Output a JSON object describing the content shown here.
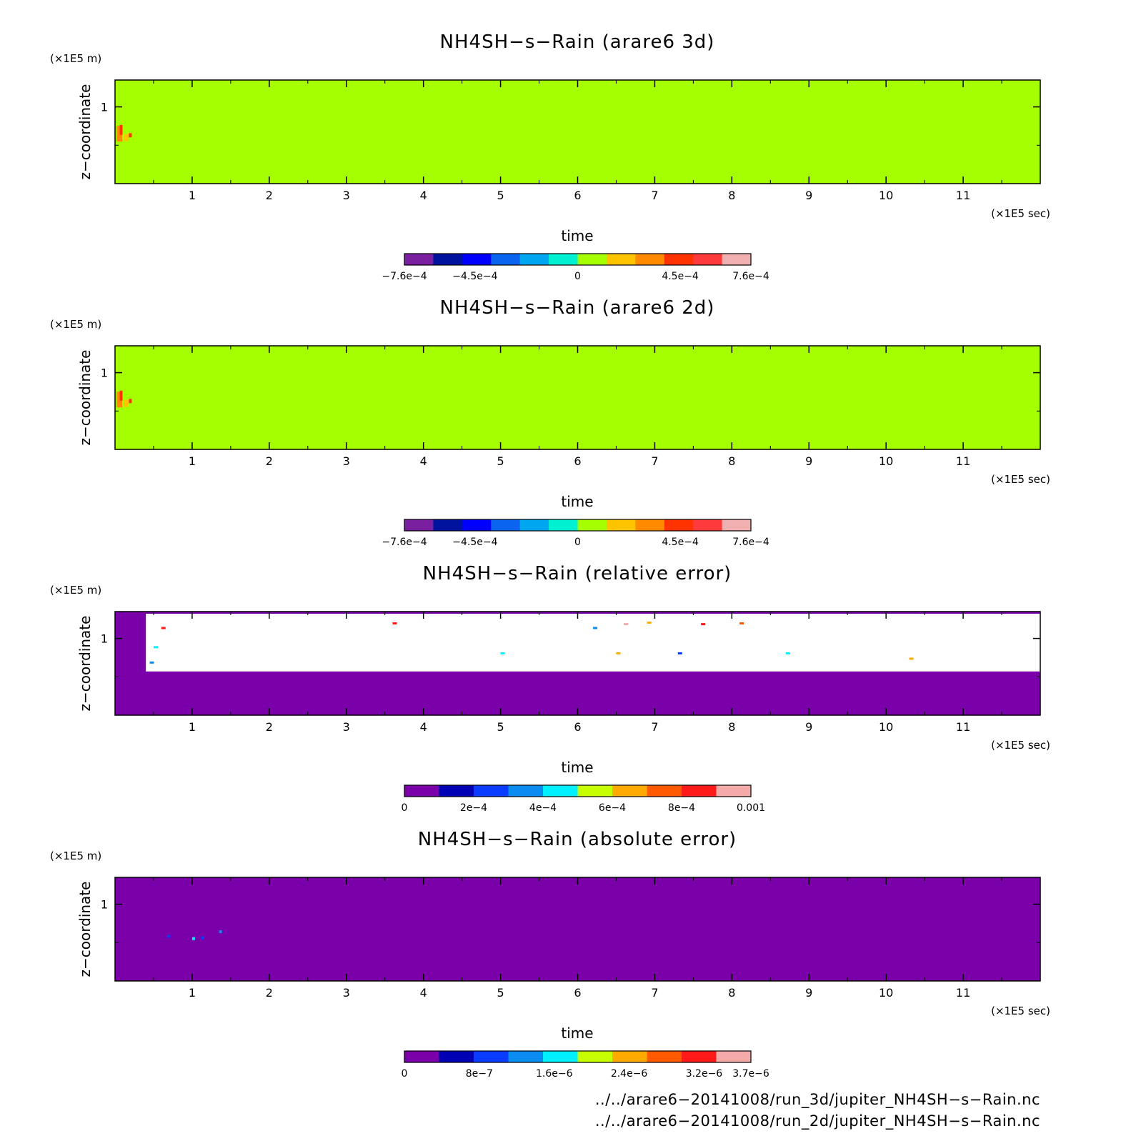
{
  "chart_data": [
    {
      "type": "heatmap",
      "title": "NH4SH−s−Rain (arare6 3d)",
      "xlabel": "time",
      "ylabel": "z−coordinate",
      "x_unit": "(×1E5 sec)",
      "y_unit": "(×1E5 m)",
      "xlim": [
        0,
        12
      ],
      "ylim": [
        0,
        1.35
      ],
      "x_ticks": [
        "1",
        "2",
        "3",
        "4",
        "5",
        "6",
        "7",
        "8",
        "9",
        "10",
        "11"
      ],
      "y_ticks": [
        "1"
      ],
      "background_value": "0",
      "features": [
        {
          "t": 0.1,
          "z": 0.7,
          "note": "orange/red positive values near start"
        }
      ],
      "colorbar": {
        "range": [
          -0.00076,
          0.00076
        ],
        "colors": [
          "#7a1fa0",
          "#00139e",
          "#0000ff",
          "#0a64f0",
          "#00a6f0",
          "#00f0d2",
          "#a6ff00",
          "#ffc400",
          "#ff8a00",
          "#ff3300",
          "#ff3a3a",
          "#f0b0b0"
        ],
        "labels": [
          "−7.6e−4",
          "−4.5e−4",
          "0",
          "4.5e−4",
          "7.6e−4"
        ]
      }
    },
    {
      "type": "heatmap",
      "title": "NH4SH−s−Rain (arare6 2d)",
      "xlabel": "time",
      "ylabel": "z−coordinate",
      "x_unit": "(×1E5 sec)",
      "y_unit": "(×1E5 m)",
      "xlim": [
        0,
        12
      ],
      "ylim": [
        0,
        1.35
      ],
      "x_ticks": [
        "1",
        "2",
        "3",
        "4",
        "5",
        "6",
        "7",
        "8",
        "9",
        "10",
        "11"
      ],
      "y_ticks": [
        "1"
      ],
      "background_value": "0",
      "colorbar": {
        "range": [
          -0.00076,
          0.00076
        ],
        "colors": [
          "#7a1fa0",
          "#00139e",
          "#0000ff",
          "#0a64f0",
          "#00a6f0",
          "#00f0d2",
          "#a6ff00",
          "#ffc400",
          "#ff8a00",
          "#ff3300",
          "#ff3a3a",
          "#f0b0b0"
        ],
        "labels": [
          "−7.6e−4",
          "−4.5e−4",
          "0",
          "4.5e−4",
          "7.6e−4"
        ]
      }
    },
    {
      "type": "heatmap",
      "title": "NH4SH−s−Rain (relative error)",
      "xlabel": "time",
      "ylabel": "z−coordinate",
      "x_unit": "(×1E5 sec)",
      "y_unit": "(×1E5 m)",
      "xlim": [
        0,
        12
      ],
      "ylim": [
        0,
        1.35
      ],
      "x_ticks": [
        "1",
        "2",
        "3",
        "4",
        "5",
        "6",
        "7",
        "8",
        "9",
        "10",
        "11"
      ],
      "y_ticks": [
        "1"
      ],
      "regions": [
        {
          "t": [
            0,
            0.4
          ],
          "z": [
            0,
            1.35
          ],
          "value": "0"
        },
        {
          "t": [
            0.4,
            12
          ],
          "z": [
            0,
            0.57
          ],
          "value": "0"
        },
        {
          "t": [
            0.4,
            12
          ],
          "z": [
            0.57,
            1.35
          ],
          "value": "undefined (white)"
        }
      ],
      "colorbar": {
        "range": [
          0,
          0.001
        ],
        "colors": [
          "#7a00aa",
          "#0000b4",
          "#0a3cff",
          "#0a8cf0",
          "#00f0ff",
          "#c8ff00",
          "#ffaa00",
          "#ff5a00",
          "#ff1a1a",
          "#f5aaaa"
        ],
        "labels": [
          "0",
          "2e−4",
          "4e−4",
          "6e−4",
          "8e−4",
          "0.001"
        ]
      }
    },
    {
      "type": "heatmap",
      "title": "NH4SH−s−Rain (absolute error)",
      "xlabel": "time",
      "ylabel": "z−coordinate",
      "x_unit": "(×1E5 sec)",
      "y_unit": "(×1E5 m)",
      "xlim": [
        0,
        12
      ],
      "ylim": [
        0,
        1.35
      ],
      "x_ticks": [
        "1",
        "2",
        "3",
        "4",
        "5",
        "6",
        "7",
        "8",
        "9",
        "10",
        "11"
      ],
      "y_ticks": [
        "1"
      ],
      "background_value": "0",
      "colorbar": {
        "range": [
          0,
          3.7e-06
        ],
        "colors": [
          "#7a00aa",
          "#0000b4",
          "#0a3cff",
          "#0a8cf0",
          "#00f0ff",
          "#c8ff00",
          "#ffaa00",
          "#ff5a00",
          "#ff1a1a",
          "#f5aaaa"
        ],
        "labels": [
          "0",
          "8e−7",
          "1.6e−6",
          "2.4e−6",
          "3.2e−6",
          "3.7e−6"
        ]
      }
    }
  ],
  "footer": {
    "line1": "../../arare6−20141008/run_3d/jupiter_NH4SH−s−Rain.nc",
    "line2": "../../arare6−20141008/run_2d/jupiter_NH4SH−s−Rain.nc"
  }
}
